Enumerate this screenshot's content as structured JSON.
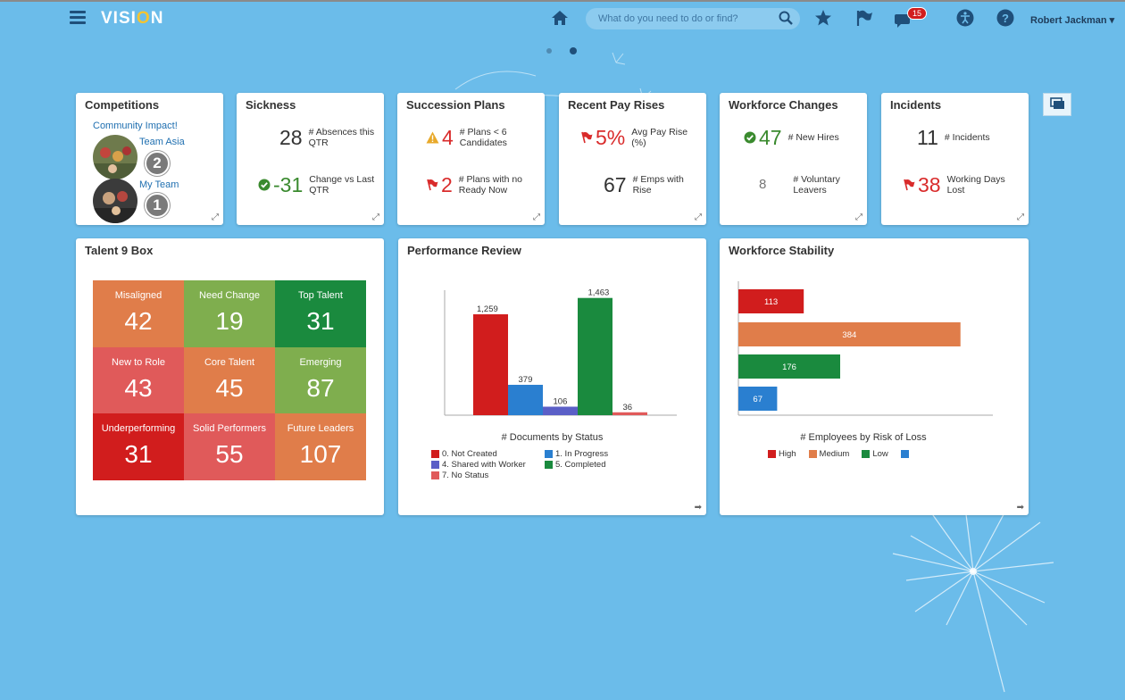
{
  "app": {
    "logo": "VISION",
    "search_placeholder": "What do you need to do or find?",
    "notification_count": "15",
    "user": "Robert Jackman"
  },
  "icons": {
    "menu": "hamburger-icon",
    "home": "home-icon",
    "search": "search-icon",
    "favorites": "star-icon",
    "flag": "flag-icon",
    "notifications": "notification-icon",
    "accessibility": "accessibility-icon",
    "help": "help-icon",
    "expand": "expand-icon"
  },
  "colors": {
    "background": "#6bbcea",
    "red": "#d11d1d",
    "blue": "#2a7fd0",
    "purple": "#5b5fc7",
    "green": "#1a8a3e",
    "salmon": "#e05a5a",
    "orange": "#e07d4a",
    "olive": "#7fae4e"
  },
  "competitions": {
    "title": "Competitions",
    "link": "Community Impact!",
    "teams": [
      {
        "name": "Team Asia",
        "rank": "2"
      },
      {
        "name": "My Team",
        "rank": "1"
      }
    ]
  },
  "sickness": {
    "title": "Sickness",
    "m1_value": "28",
    "m1_label": "# Absences this QTR",
    "m2_value": "-31",
    "m2_label": "Change vs Last QTR"
  },
  "succession": {
    "title": "Succession Plans",
    "m1_value": "4",
    "m1_label": "# Plans < 6 Candidates",
    "m2_value": "2",
    "m2_label": "# Plans with no Ready Now"
  },
  "payrises": {
    "title": "Recent Pay Rises",
    "m1_value": "5%",
    "m1_label": "Avg Pay Rise (%)",
    "m2_value": "67",
    "m2_label": "# Emps with Rise"
  },
  "workforce_changes": {
    "title": "Workforce Changes",
    "m1_value": "47",
    "m1_label": "# New Hires",
    "m2_value": "8",
    "m2_label": "# Voluntary Leavers"
  },
  "incidents": {
    "title": "Incidents",
    "m1_value": "11",
    "m1_label": "# Incidents",
    "m2_value": "38",
    "m2_label": "Working Days Lost"
  },
  "talent9": {
    "title": "Talent 9 Box",
    "cells": [
      {
        "label": "Misaligned",
        "value": "42",
        "color": "#e07d4a"
      },
      {
        "label": "Need Change",
        "value": "19",
        "color": "#7fae4e"
      },
      {
        "label": "Top Talent",
        "value": "31",
        "color": "#1a8a3e"
      },
      {
        "label": "New to Role",
        "value": "43",
        "color": "#e05a5a"
      },
      {
        "label": "Core Talent",
        "value": "45",
        "color": "#e07d4a"
      },
      {
        "label": "Emerging",
        "value": "87",
        "color": "#7fae4e"
      },
      {
        "label": "Underperforming",
        "value": "31",
        "color": "#d11d1d"
      },
      {
        "label": "Solid Performers",
        "value": "55",
        "color": "#e05a5a"
      },
      {
        "label": "Future Leaders",
        "value": "107",
        "color": "#e07d4a"
      }
    ]
  },
  "performance_review": {
    "title": "Performance Review"
  },
  "workforce_stability": {
    "title": "Workforce Stability"
  },
  "chart_data": [
    {
      "type": "bar",
      "title": "",
      "xlabel": "# Documents by Status",
      "ylabel": "",
      "series": [
        {
          "name": "0. Not Created",
          "values": [
            1259
          ],
          "color": "#d11d1d"
        },
        {
          "name": "1. In Progress",
          "values": [
            379
          ],
          "color": "#2a7fd0"
        },
        {
          "name": "4. Shared with Worker",
          "values": [
            106
          ],
          "color": "#5b5fc7"
        },
        {
          "name": "5. Completed",
          "values": [
            1463
          ],
          "color": "#1a8a3e"
        },
        {
          "name": "7. No Status",
          "values": [
            36
          ],
          "color": "#e05a5a"
        }
      ],
      "data_labels": [
        "1,259",
        "379",
        "106",
        "1,463",
        "36"
      ],
      "ylim": [
        0,
        1560
      ],
      "grid": false,
      "legend": "bottom"
    },
    {
      "type": "bar",
      "orientation": "horizontal",
      "title": "",
      "xlabel": "# Employees by Risk of Loss",
      "ylabel": "",
      "series": [
        {
          "name": "High",
          "values": [
            113
          ],
          "color": "#d11d1d"
        },
        {
          "name": "Medium",
          "values": [
            384
          ],
          "color": "#e07d4a"
        },
        {
          "name": "Low",
          "values": [
            176
          ],
          "color": "#1a8a3e"
        },
        {
          "name": "",
          "values": [
            67
          ],
          "color": "#2a7fd0"
        }
      ],
      "data_labels": [
        "113",
        "384",
        "176",
        "67"
      ],
      "xlim": [
        0,
        440
      ],
      "grid": false,
      "legend": "bottom"
    }
  ]
}
